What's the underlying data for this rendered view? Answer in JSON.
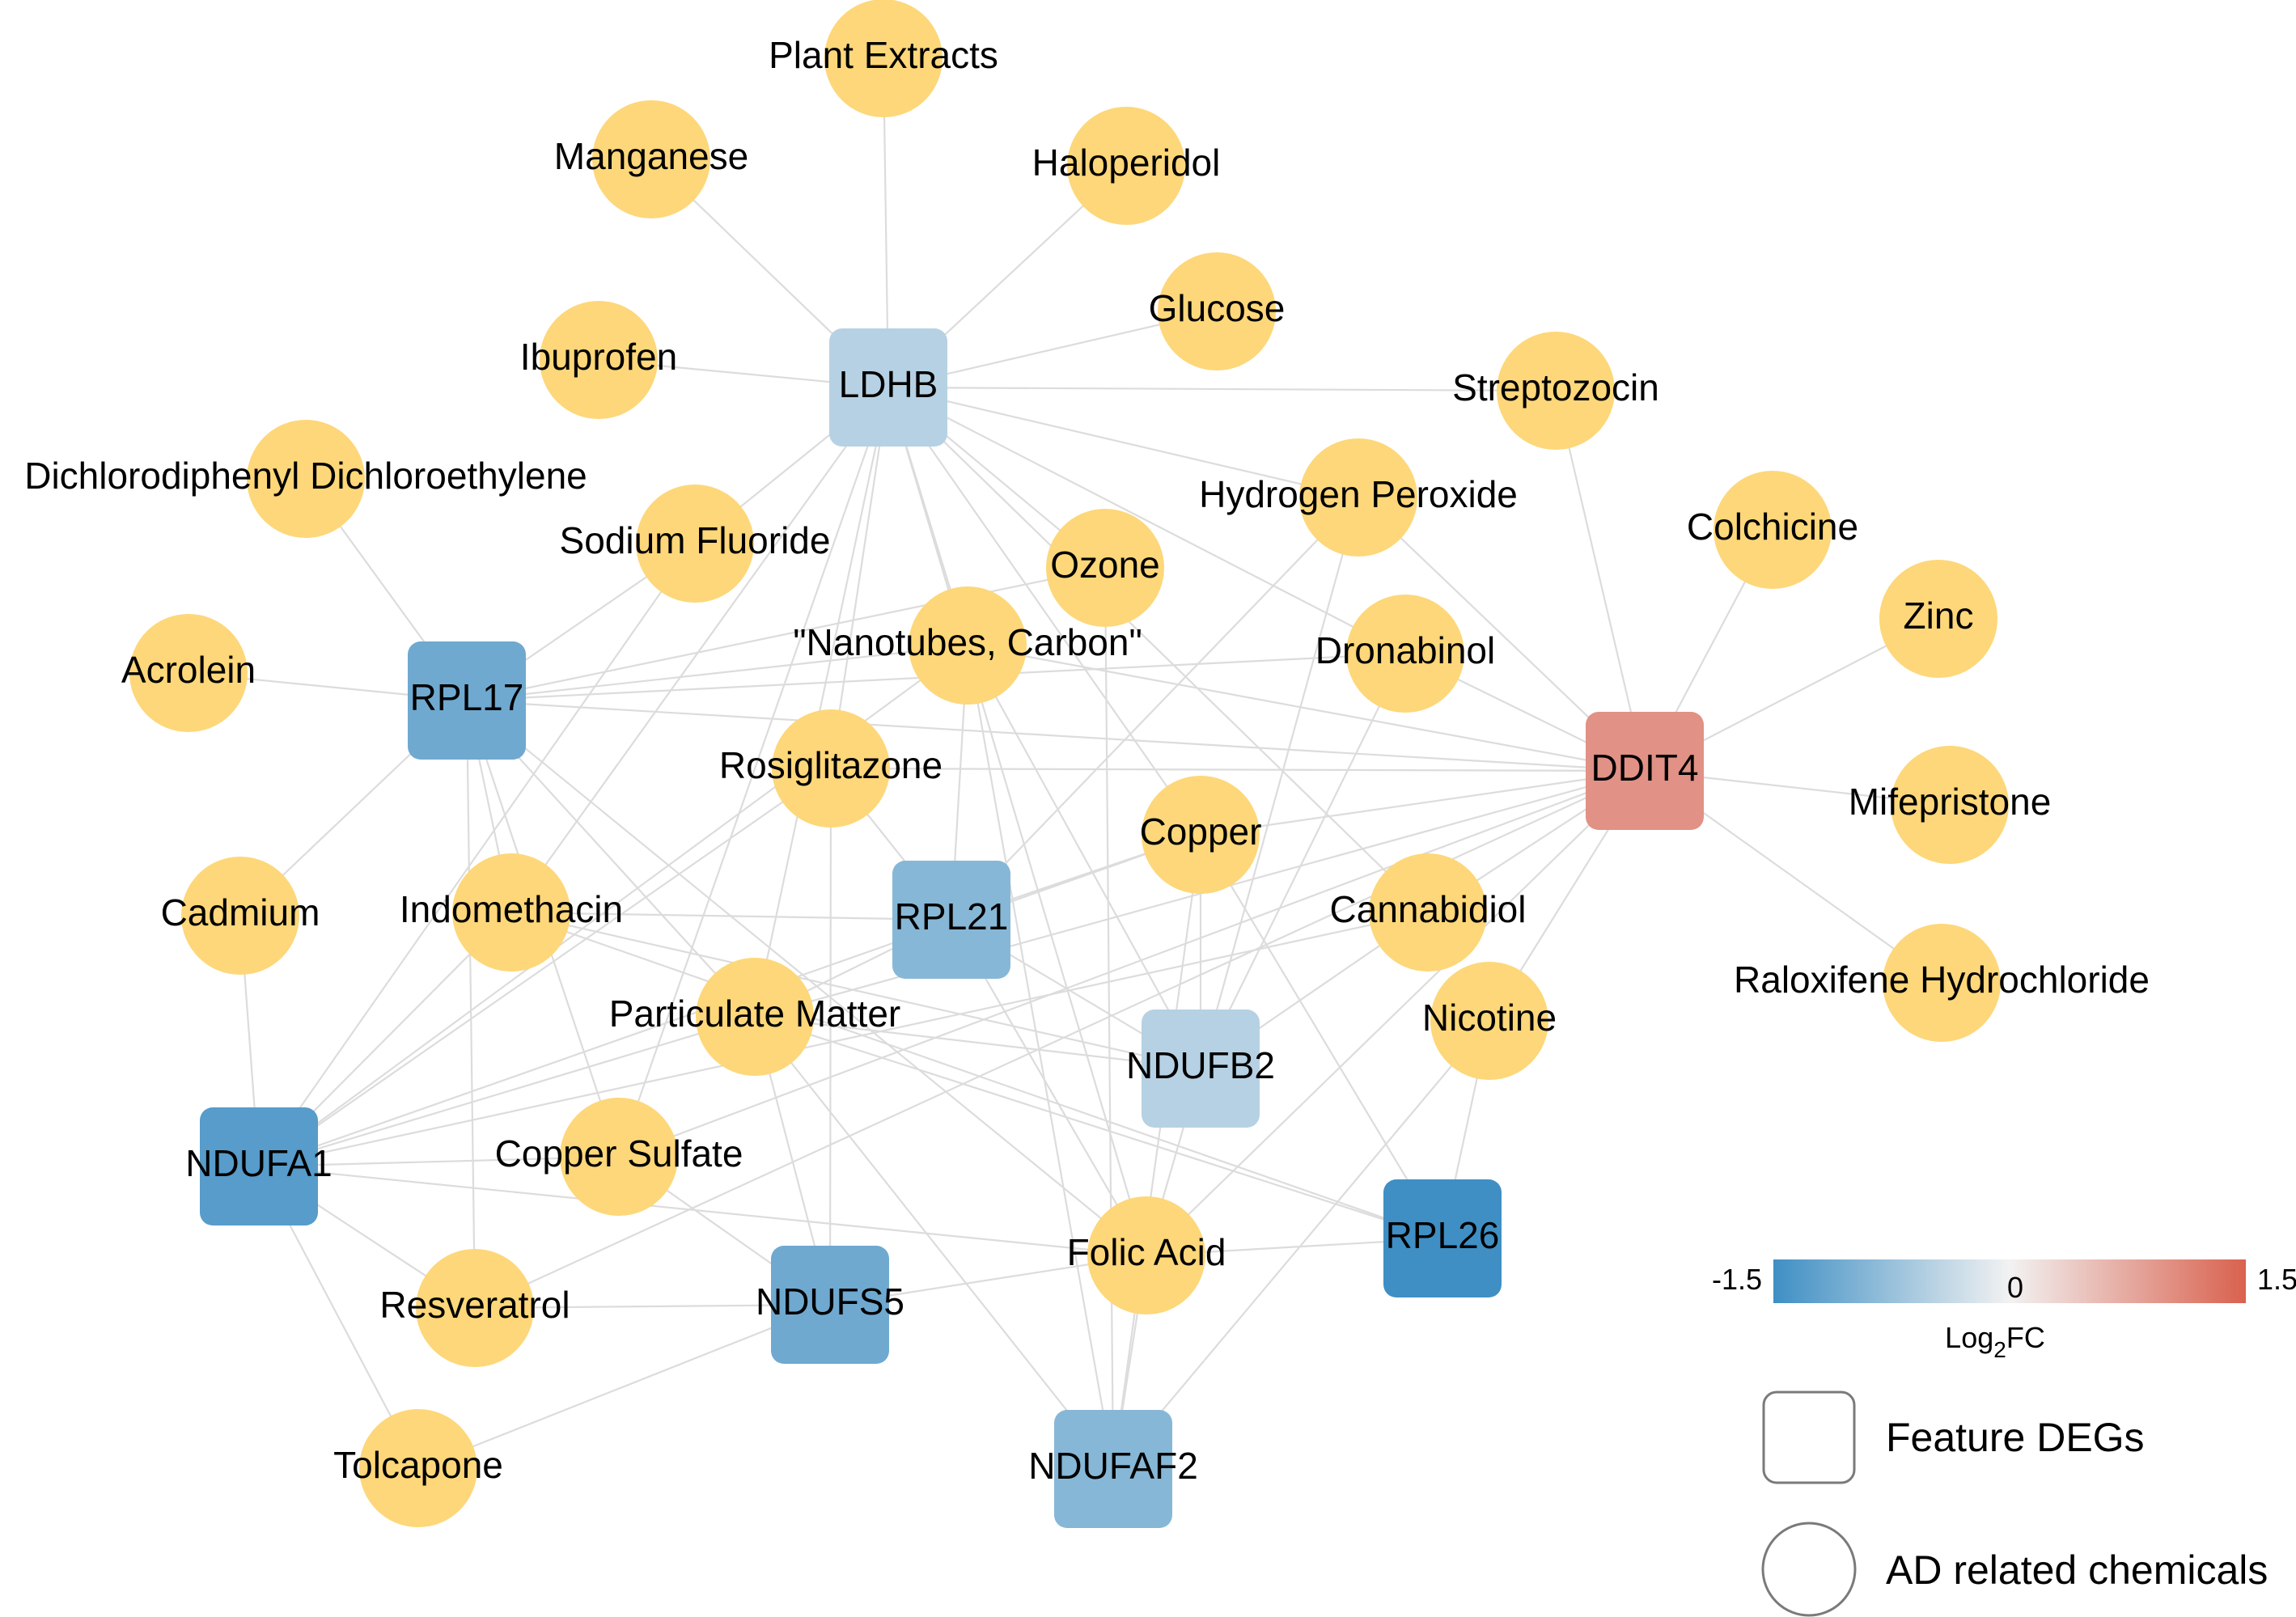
{
  "colors": {
    "chemical": "#fdd779",
    "edge": "#dcdcdc",
    "scale_low": "#3f8fc4",
    "scale_mid": "#f2f2f2",
    "scale_high": "#d9614e"
  },
  "chemicals": [
    {
      "id": "plant-extracts",
      "label": "Plant Extracts"
    },
    {
      "id": "manganese",
      "label": "Manganese"
    },
    {
      "id": "haloperidol",
      "label": "Haloperidol"
    },
    {
      "id": "glucose",
      "label": "Glucose"
    },
    {
      "id": "ibuprofen",
      "label": "Ibuprofen"
    },
    {
      "id": "streptozocin",
      "label": "Streptozocin"
    },
    {
      "id": "ddde",
      "label": "Dichlorodiphenyl Dichloroethylene"
    },
    {
      "id": "hydrogen-peroxide",
      "label": "Hydrogen Peroxide"
    },
    {
      "id": "colchicine",
      "label": "Colchicine"
    },
    {
      "id": "sodium-fluoride",
      "label": "Sodium Fluoride"
    },
    {
      "id": "ozone",
      "label": "Ozone"
    },
    {
      "id": "zinc",
      "label": "Zinc"
    },
    {
      "id": "nanotubes",
      "label": "\"Nanotubes, Carbon\""
    },
    {
      "id": "dronabinol",
      "label": "Dronabinol"
    },
    {
      "id": "acrolein",
      "label": "Acrolein"
    },
    {
      "id": "rosiglitazone",
      "label": "Rosiglitazone"
    },
    {
      "id": "mifepristone",
      "label": "Mifepristone"
    },
    {
      "id": "copper",
      "label": "Copper"
    },
    {
      "id": "cadmium",
      "label": "Cadmium"
    },
    {
      "id": "indomethacin",
      "label": "Indomethacin"
    },
    {
      "id": "cannabidiol",
      "label": "Cannabidiol"
    },
    {
      "id": "raloxifene",
      "label": "Raloxifene Hydrochloride"
    },
    {
      "id": "particulate-matter",
      "label": "Particulate Matter"
    },
    {
      "id": "nicotine",
      "label": "Nicotine"
    },
    {
      "id": "copper-sulfate",
      "label": "Copper Sulfate"
    },
    {
      "id": "folic-acid",
      "label": "Folic Acid"
    },
    {
      "id": "resveratrol",
      "label": "Resveratrol"
    },
    {
      "id": "tolcapone",
      "label": "Tolcapone"
    }
  ],
  "genes": [
    {
      "id": "ldhb",
      "label": "LDHB",
      "log2fc": -0.5
    },
    {
      "id": "rpl17",
      "label": "RPL17",
      "log2fc": -1.1
    },
    {
      "id": "ddit4",
      "label": "DDIT4",
      "log2fc": 1.0
    },
    {
      "id": "rpl21",
      "label": "RPL21",
      "log2fc": -0.9
    },
    {
      "id": "ndufb2",
      "label": "NDUFB2",
      "log2fc": -0.5
    },
    {
      "id": "ndufa1",
      "label": "NDUFA1",
      "log2fc": -1.3
    },
    {
      "id": "rpl26",
      "label": "RPL26",
      "log2fc": -1.5
    },
    {
      "id": "ndufs5",
      "label": "NDUFS5",
      "log2fc": -1.1
    },
    {
      "id": "ndufaf2",
      "label": "NDUFAF2",
      "log2fc": -0.9
    }
  ],
  "edges": [
    [
      "ldhb",
      "plant-extracts"
    ],
    [
      "ldhb",
      "manganese"
    ],
    [
      "ldhb",
      "haloperidol"
    ],
    [
      "ldhb",
      "glucose"
    ],
    [
      "ldhb",
      "ibuprofen"
    ],
    [
      "ldhb",
      "streptozocin"
    ],
    [
      "ldhb",
      "sodium-fluoride"
    ],
    [
      "ldhb",
      "ozone"
    ],
    [
      "ldhb",
      "hydrogen-peroxide"
    ],
    [
      "ldhb",
      "dronabinol"
    ],
    [
      "ldhb",
      "nanotubes"
    ],
    [
      "ldhb",
      "rosiglitazone"
    ],
    [
      "ldhb",
      "copper"
    ],
    [
      "ldhb",
      "indomethacin"
    ],
    [
      "ldhb",
      "particulate-matter"
    ],
    [
      "ldhb",
      "copper-sulfate"
    ],
    [
      "ldhb",
      "cannabidiol"
    ],
    [
      "ldhb",
      "folic-acid"
    ],
    [
      "rpl17",
      "ddde"
    ],
    [
      "rpl17",
      "acrolein"
    ],
    [
      "rpl17",
      "cadmium"
    ],
    [
      "rpl17",
      "sodium-fluoride"
    ],
    [
      "rpl17",
      "ozone"
    ],
    [
      "rpl17",
      "nanotubes"
    ],
    [
      "rpl17",
      "dronabinol"
    ],
    [
      "rpl17",
      "indomethacin"
    ],
    [
      "rpl17",
      "particulate-matter"
    ],
    [
      "rpl17",
      "copper-sulfate"
    ],
    [
      "rpl17",
      "resveratrol"
    ],
    [
      "rpl17",
      "folic-acid"
    ],
    [
      "rpl17",
      "ddit4"
    ],
    [
      "ddit4",
      "streptozocin"
    ],
    [
      "ddit4",
      "colchicine"
    ],
    [
      "ddit4",
      "zinc"
    ],
    [
      "ddit4",
      "mifepristone"
    ],
    [
      "ddit4",
      "raloxifene"
    ],
    [
      "ddit4",
      "hydrogen-peroxide"
    ],
    [
      "ddit4",
      "dronabinol"
    ],
    [
      "ddit4",
      "rosiglitazone"
    ],
    [
      "ddit4",
      "nanotubes"
    ],
    [
      "ddit4",
      "copper"
    ],
    [
      "ddit4",
      "cannabidiol"
    ],
    [
      "ddit4",
      "nicotine"
    ],
    [
      "ddit4",
      "particulate-matter"
    ],
    [
      "ddit4",
      "copper-sulfate"
    ],
    [
      "ddit4",
      "resveratrol"
    ],
    [
      "ddit4",
      "folic-acid"
    ],
    [
      "rpl21",
      "nanotubes"
    ],
    [
      "rpl21",
      "rosiglitazone"
    ],
    [
      "rpl21",
      "copper"
    ],
    [
      "rpl21",
      "indomethacin"
    ],
    [
      "rpl21",
      "particulate-matter"
    ],
    [
      "rpl21",
      "hydrogen-peroxide"
    ],
    [
      "rpl21",
      "folic-acid"
    ],
    [
      "rpl21",
      "ndufb2"
    ],
    [
      "ndufb2",
      "copper"
    ],
    [
      "ndufb2",
      "cannabidiol"
    ],
    [
      "ndufb2",
      "dronabinol"
    ],
    [
      "ndufb2",
      "hydrogen-peroxide"
    ],
    [
      "ndufb2",
      "nanotubes"
    ],
    [
      "ndufb2",
      "indomethacin"
    ],
    [
      "ndufb2",
      "particulate-matter"
    ],
    [
      "ndufb2",
      "folic-acid"
    ],
    [
      "ndufa1",
      "cadmium"
    ],
    [
      "ndufa1",
      "indomethacin"
    ],
    [
      "ndufa1",
      "particulate-matter"
    ],
    [
      "ndufa1",
      "copper-sulfate"
    ],
    [
      "ndufa1",
      "resveratrol"
    ],
    [
      "ndufa1",
      "tolcapone"
    ],
    [
      "ndufa1",
      "sodium-fluoride"
    ],
    [
      "ndufa1",
      "rosiglitazone"
    ],
    [
      "ndufa1",
      "copper"
    ],
    [
      "ndufa1",
      "folic-acid"
    ],
    [
      "ndufa1",
      "cannabidiol"
    ],
    [
      "ndufa1",
      "nanotubes"
    ],
    [
      "rpl26",
      "nicotine"
    ],
    [
      "rpl26",
      "folic-acid"
    ],
    [
      "rpl26",
      "copper"
    ],
    [
      "rpl26",
      "particulate-matter"
    ],
    [
      "rpl26",
      "indomethacin"
    ],
    [
      "ndufs5",
      "resveratrol"
    ],
    [
      "ndufs5",
      "tolcapone"
    ],
    [
      "ndufs5",
      "copper-sulfate"
    ],
    [
      "ndufs5",
      "folic-acid"
    ],
    [
      "ndufs5",
      "rosiglitazone"
    ],
    [
      "ndufs5",
      "particulate-matter"
    ],
    [
      "ndufaf2",
      "folic-acid"
    ],
    [
      "ndufaf2",
      "nicotine"
    ],
    [
      "ndufaf2",
      "copper"
    ],
    [
      "ndufaf2",
      "particulate-matter"
    ],
    [
      "ndufaf2",
      "nanotubes"
    ],
    [
      "ndufaf2",
      "ozone"
    ]
  ],
  "legend": {
    "scale_min": "-1.5",
    "scale_mid": "0",
    "scale_max": "1.5",
    "axis_label_main": "Log",
    "axis_label_sub": "2",
    "axis_label_tail": "FC",
    "feature_degs": "Feature DEGs",
    "ad_chemicals": "AD related chemicals"
  }
}
